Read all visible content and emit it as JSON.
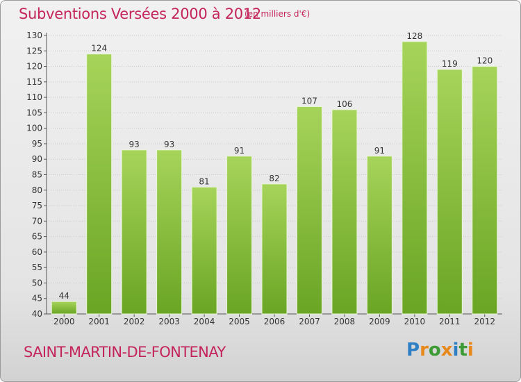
{
  "header": {
    "title": "Subventions Versées 2000 à 2012",
    "subtitle": "(en milliers d'€)"
  },
  "footer": {
    "commune": "SAINT-MARTIN-DE-FONTENAY",
    "brand": "Proxiti"
  },
  "colors": {
    "title": "#c4245c",
    "bar_light": "#a6d45a",
    "bar_dark": "#6aa524",
    "brand_letters": [
      "#2e7fc4",
      "#e8891c",
      "#3d9b35",
      "#e8891c",
      "#2e7fc4",
      "#3d9b35",
      "#e8891c"
    ]
  },
  "chart_data": {
    "type": "bar",
    "title": "Subventions Versées 2000 à 2012",
    "subtitle": "(en milliers d'€)",
    "xlabel": "",
    "ylabel": "",
    "categories": [
      "2000",
      "2001",
      "2002",
      "2003",
      "2004",
      "2005",
      "2006",
      "2007",
      "2008",
      "2009",
      "2010",
      "2011",
      "2012"
    ],
    "values": [
      44,
      124,
      93,
      93,
      81,
      91,
      82,
      107,
      106,
      91,
      128,
      119,
      120
    ],
    "ylim": [
      40,
      130
    ],
    "yticks": [
      40,
      45,
      50,
      55,
      60,
      65,
      70,
      75,
      80,
      85,
      90,
      95,
      100,
      105,
      110,
      115,
      120,
      125,
      130
    ],
    "grid": true,
    "legend": "none"
  }
}
